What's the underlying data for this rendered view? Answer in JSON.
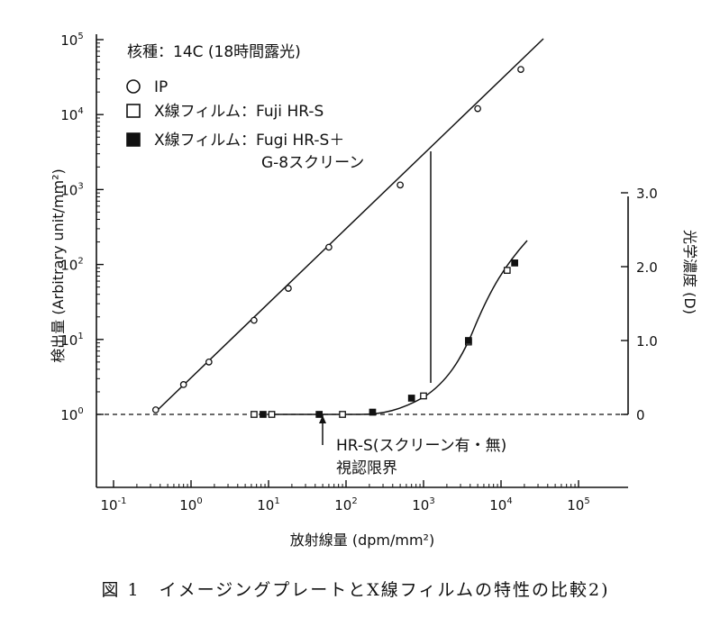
{
  "chart_data": {
    "type": "scatter",
    "x_scale": "log",
    "y_left_scale": "log",
    "x_ticks": [
      {
        "exp": "-1",
        "label": "10-1"
      },
      {
        "exp": "0",
        "label": "100"
      },
      {
        "exp": "1",
        "label": "101"
      },
      {
        "exp": "2",
        "label": "102"
      },
      {
        "exp": "3",
        "label": "103"
      },
      {
        "exp": "4",
        "label": "104"
      },
      {
        "exp": "5",
        "label": "105"
      }
    ],
    "y_left_ticks": [
      {
        "exp": "0",
        "label": "100"
      },
      {
        "exp": "1",
        "label": "101"
      },
      {
        "exp": "2",
        "label": "102"
      },
      {
        "exp": "3",
        "label": "103"
      },
      {
        "exp": "4",
        "label": "104"
      },
      {
        "exp": "5",
        "label": "105"
      }
    ],
    "y_right_ticks": [
      "0",
      "1.0",
      "2.0",
      "3.0"
    ],
    "xlabel": "放射線量 (dpm/mm²)",
    "ylabel_left": "検出量 (Arbitrary unit/mm²)",
    "ylabel_right": "光学濃度 (D)",
    "legend": {
      "header": "核種：14C (18時間露光)",
      "items": [
        {
          "marker": "open-circle",
          "label": "IP"
        },
        {
          "marker": "open-square",
          "label": "X線フィルム：Fuji HR-S"
        },
        {
          "marker": "filled-square",
          "label": "X線フィルム：Fugi HR-S＋"
        }
      ],
      "continuation": "G-8スクリーン"
    },
    "annotation": {
      "line1": "HR-S(スクリーン有・無)",
      "line2": "視認限界"
    },
    "series": [
      {
        "name": "IP",
        "axis": "left",
        "marker": "open-circle",
        "x": [
          0.35,
          0.8,
          1.7,
          6.5,
          18,
          60,
          500,
          5000,
          18000
        ],
        "y": [
          1.15,
          2.5,
          5.0,
          18,
          48,
          170,
          1150,
          12000,
          40000
        ]
      },
      {
        "name": "X線フィルム：Fuji HR-S",
        "axis": "right",
        "marker": "open-square",
        "x": [
          6.5,
          11,
          90,
          1000,
          3800,
          12000
        ],
        "y": [
          0,
          0,
          0,
          0.25,
          0.98,
          1.95
        ]
      },
      {
        "name": "X線フィルム：Fugi HR-S＋",
        "axis": "right",
        "marker": "filled-square",
        "x": [
          8.5,
          45,
          220,
          700,
          3800,
          15000
        ],
        "y": [
          0,
          0,
          0.03,
          0.22,
          1.0,
          2.05
        ]
      }
    ]
  },
  "caption": "図 1　イメージングプレートとX線フィルムの特性の比較2)"
}
